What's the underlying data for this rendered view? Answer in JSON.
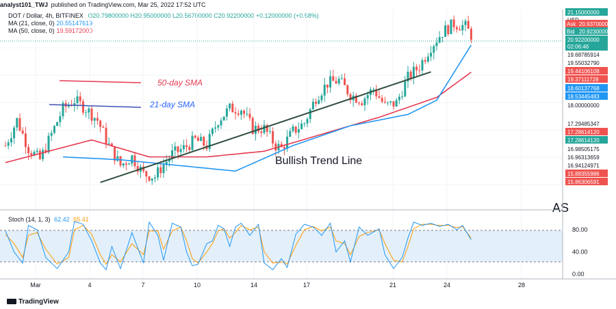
{
  "header": {
    "author": "analyst101_TWJ",
    "published_on": "published on TradingView.com, Mar 25, 2022 17:52 UTC"
  },
  "legend": {
    "symbol": "DOT / Dollar, 4h, BITFINEX",
    "ohlc": {
      "o": "O20.79800000",
      "h": "H20.95000000",
      "l": "L20.56700000",
      "c": "C20.92200000"
    },
    "change": "+0.12000000 (+0.58%)",
    "ma21_label": "MA (21, close, 0)",
    "ma21_value": "20.55147619",
    "ma50_label": "MA (50, close, 0)",
    "ma50_value": "19.59172000"
  },
  "stoch": {
    "label": "Stoch (14, 1, 3)",
    "k": "62.42",
    "d": "65.41"
  },
  "footer": {
    "brand": "TradingView"
  },
  "colors": {
    "up": "#26a69a",
    "down": "#ef5350",
    "ma21": "#2196f3",
    "ma50": "#e53950",
    "trend": "#2f4f3f",
    "stoch_k": "#2196f3",
    "stoch_d": "#ff9800",
    "stoch_band": "#e3f0fb",
    "grid": "#f0f3fa"
  },
  "chart_data": {
    "type": "candlestick",
    "timeframe": "4h",
    "x_tick_labels": [
      "Mar",
      "4",
      "7",
      "10",
      "14",
      "17",
      "21",
      "24",
      "28"
    ],
    "price_axis": [
      {
        "label": "21.15000000",
        "color": "#26a69a"
      },
      {
        "label": "USD",
        "color": "#ffffff"
      },
      {
        "label": "Ask",
        "color": "#ef5350",
        "price": "20.93700000"
      },
      {
        "label": "Bid",
        "color": "#26a69a",
        "price": "20.92300000"
      },
      {
        "label": "20.92200000",
        "color": "#26a69a",
        "sub": "02:06:46"
      },
      {
        "label": "19.68785914",
        "color": "#ffffff"
      },
      {
        "label": "19.55032790",
        "color": "#ffffff"
      },
      {
        "label": "19.44106108",
        "color": "#ef5350"
      },
      {
        "label": "19.37111728",
        "color": "#ef5350"
      },
      {
        "label": "18.60137768",
        "color": "#2196f3"
      },
      {
        "label": "18.53445483",
        "color": "#2196f3"
      },
      {
        "label": "18.00000000",
        "color": "#ffffff"
      },
      {
        "label": "17.29485347",
        "color": "#ffffff"
      },
      {
        "label": "17.28614120",
        "color": "#ef5350"
      },
      {
        "label": "17.28614120",
        "color": "#26a69a"
      },
      {
        "label": "16.98505175",
        "color": "#ffffff"
      },
      {
        "label": "16.96313659",
        "color": "#ffffff"
      },
      {
        "label": "16.94124971",
        "color": "#ffffff"
      },
      {
        "label": "15.88355986",
        "color": "#ef5350"
      },
      {
        "label": "15.86306591",
        "color": "#ef5350"
      }
    ],
    "stoch_axis": [
      "80.00",
      "40.00",
      "0.00"
    ],
    "annotations": {
      "sma50": "50-day SMA",
      "sma21": "21-day SMA",
      "trend": "Bullish Trend Line",
      "watermark": "AS"
    },
    "anchors": [
      [
        0,
        17.0
      ],
      [
        4,
        17.9
      ],
      [
        8,
        16.9
      ],
      [
        12,
        16.5
      ],
      [
        16,
        17.4
      ],
      [
        20,
        18.3
      ],
      [
        24,
        18.6
      ],
      [
        28,
        18.3
      ],
      [
        32,
        17.9
      ],
      [
        36,
        17.0
      ],
      [
        40,
        16.3
      ],
      [
        44,
        16.6
      ],
      [
        48,
        16.0
      ],
      [
        52,
        15.9
      ],
      [
        54,
        16.2
      ],
      [
        58,
        16.7
      ],
      [
        62,
        16.9
      ],
      [
        66,
        17.2
      ],
      [
        70,
        17.0
      ],
      [
        74,
        17.9
      ],
      [
        78,
        18.3
      ],
      [
        82,
        18.3
      ],
      [
        86,
        17.6
      ],
      [
        90,
        17.6
      ],
      [
        94,
        17.0
      ],
      [
        96,
        16.9
      ],
      [
        100,
        17.5
      ],
      [
        104,
        17.8
      ],
      [
        108,
        18.7
      ],
      [
        112,
        19.2
      ],
      [
        116,
        19.3
      ],
      [
        120,
        18.8
      ],
      [
        124,
        18.6
      ],
      [
        128,
        19.0
      ],
      [
        132,
        18.4
      ],
      [
        136,
        18.5
      ],
      [
        140,
        19.4
      ],
      [
        144,
        19.8
      ],
      [
        148,
        20.5
      ],
      [
        152,
        21.0
      ],
      [
        156,
        21.3
      ],
      [
        160,
        21.2
      ],
      [
        162,
        20.9
      ]
    ],
    "ma21": [
      [
        20,
        16.6
      ],
      [
        40,
        16.5
      ],
      [
        60,
        16.3
      ],
      [
        80,
        16.1
      ],
      [
        100,
        17.0
      ],
      [
        120,
        17.7
      ],
      [
        140,
        18.1
      ],
      [
        150,
        18.6
      ],
      [
        162,
        20.55
      ]
    ],
    "ma50": [
      [
        0,
        16.4
      ],
      [
        30,
        17.2
      ],
      [
        50,
        16.6
      ],
      [
        70,
        16.6
      ],
      [
        90,
        16.8
      ],
      [
        110,
        17.4
      ],
      [
        130,
        18.0
      ],
      [
        150,
        18.7
      ],
      [
        162,
        19.59
      ]
    ],
    "trend_line": [
      [
        33,
        15.7
      ],
      [
        148,
        19.6
      ]
    ],
    "stoch_k_anchors": [
      [
        0,
        78
      ],
      [
        3,
        40
      ],
      [
        6,
        20
      ],
      [
        8,
        88
      ],
      [
        11,
        80
      ],
      [
        14,
        30
      ],
      [
        18,
        10
      ],
      [
        22,
        40
      ],
      [
        24,
        95
      ],
      [
        27,
        90
      ],
      [
        30,
        60
      ],
      [
        33,
        20
      ],
      [
        35,
        8
      ],
      [
        37,
        50
      ],
      [
        40,
        10
      ],
      [
        44,
        75
      ],
      [
        48,
        20
      ],
      [
        50,
        94
      ],
      [
        53,
        70
      ],
      [
        55,
        25
      ],
      [
        58,
        92
      ],
      [
        61,
        85
      ],
      [
        63,
        40
      ],
      [
        65,
        15
      ],
      [
        67,
        18
      ],
      [
        70,
        55
      ],
      [
        72,
        60
      ],
      [
        74,
        88
      ],
      [
        76,
        82
      ],
      [
        78,
        50
      ],
      [
        80,
        85
      ],
      [
        82,
        92
      ],
      [
        85,
        70
      ],
      [
        88,
        90
      ],
      [
        90,
        20
      ],
      [
        93,
        8
      ],
      [
        96,
        28
      ],
      [
        98,
        12
      ],
      [
        101,
        72
      ],
      [
        104,
        90
      ],
      [
        107,
        85
      ],
      [
        110,
        70
      ],
      [
        113,
        92
      ],
      [
        115,
        40
      ],
      [
        118,
        60
      ],
      [
        120,
        22
      ],
      [
        123,
        85
      ],
      [
        126,
        70
      ],
      [
        130,
        82
      ],
      [
        132,
        35
      ],
      [
        135,
        10
      ],
      [
        138,
        30
      ],
      [
        140,
        65
      ],
      [
        142,
        94
      ],
      [
        145,
        88
      ],
      [
        148,
        92
      ],
      [
        151,
        86
      ],
      [
        154,
        90
      ],
      [
        157,
        80
      ],
      [
        159,
        88
      ],
      [
        162,
        62
      ]
    ],
    "stoch_d_anchors": [
      [
        0,
        72
      ],
      [
        3,
        55
      ],
      [
        6,
        30
      ],
      [
        8,
        70
      ],
      [
        11,
        75
      ],
      [
        14,
        45
      ],
      [
        18,
        18
      ],
      [
        22,
        30
      ],
      [
        24,
        80
      ],
      [
        27,
        88
      ],
      [
        30,
        72
      ],
      [
        33,
        35
      ],
      [
        35,
        18
      ],
      [
        37,
        35
      ],
      [
        40,
        22
      ],
      [
        44,
        55
      ],
      [
        48,
        35
      ],
      [
        50,
        78
      ],
      [
        53,
        78
      ],
      [
        55,
        45
      ],
      [
        58,
        78
      ],
      [
        61,
        85
      ],
      [
        63,
        60
      ],
      [
        65,
        28
      ],
      [
        67,
        20
      ],
      [
        70,
        40
      ],
      [
        72,
        55
      ],
      [
        74,
        78
      ],
      [
        76,
        82
      ],
      [
        78,
        65
      ],
      [
        80,
        75
      ],
      [
        82,
        88
      ],
      [
        85,
        80
      ],
      [
        88,
        85
      ],
      [
        90,
        40
      ],
      [
        93,
        20
      ],
      [
        96,
        22
      ],
      [
        98,
        18
      ],
      [
        101,
        52
      ],
      [
        104,
        80
      ],
      [
        107,
        86
      ],
      [
        110,
        78
      ],
      [
        113,
        85
      ],
      [
        115,
        60
      ],
      [
        118,
        55
      ],
      [
        120,
        35
      ],
      [
        123,
        68
      ],
      [
        126,
        75
      ],
      [
        130,
        80
      ],
      [
        132,
        55
      ],
      [
        135,
        25
      ],
      [
        138,
        22
      ],
      [
        140,
        50
      ],
      [
        142,
        82
      ],
      [
        145,
        90
      ],
      [
        148,
        90
      ],
      [
        151,
        88
      ],
      [
        154,
        88
      ],
      [
        157,
        84
      ],
      [
        159,
        86
      ],
      [
        162,
        65
      ]
    ],
    "ylim": [
      14.9,
      21.8
    ],
    "stoch_ylim": [
      -5,
      100
    ],
    "bars": 163
  }
}
